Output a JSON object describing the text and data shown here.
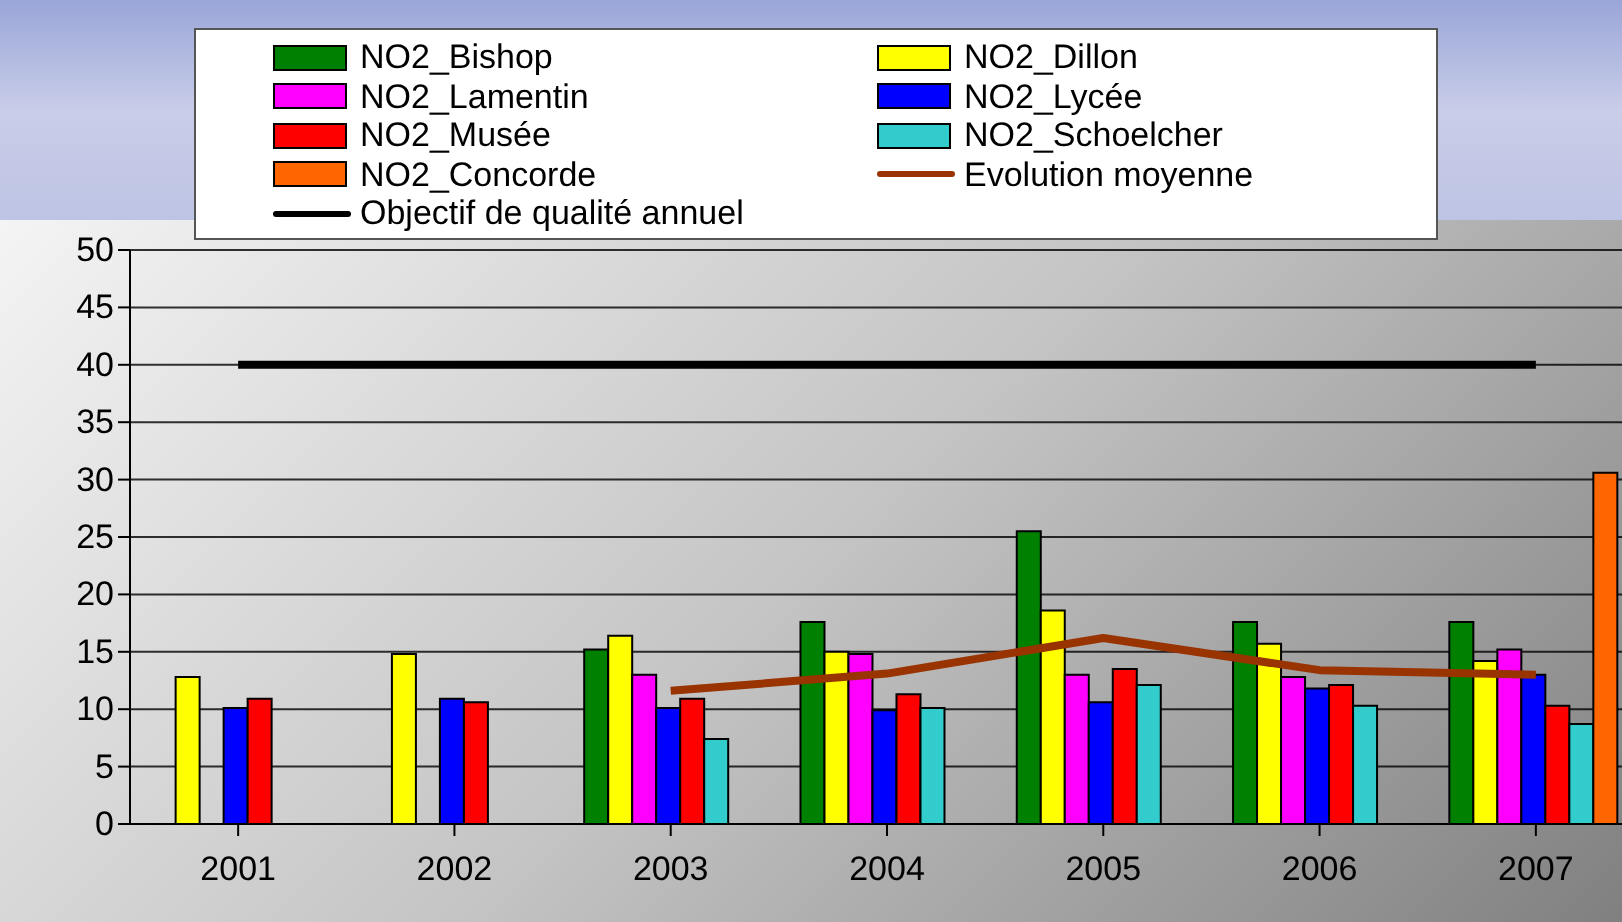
{
  "chart_data": {
    "type": "bar",
    "categories": [
      "2001",
      "2002",
      "2003",
      "2004",
      "2005",
      "2006",
      "2007"
    ],
    "series": [
      {
        "name": "NO2_Bishop",
        "color": "#008000",
        "values": [
          null,
          null,
          15.2,
          17.6,
          25.5,
          17.6,
          17.6
        ]
      },
      {
        "name": "NO2_Dillon",
        "color": "#ffff00",
        "values": [
          12.8,
          14.8,
          16.4,
          15.0,
          18.6,
          15.7,
          14.2
        ]
      },
      {
        "name": "NO2_Lamentin",
        "color": "#ff00ff",
        "values": [
          null,
          null,
          13.0,
          14.8,
          13.0,
          12.8,
          15.2
        ]
      },
      {
        "name": "NO2_Lycée",
        "color": "#0000ff",
        "values": [
          10.1,
          10.9,
          10.1,
          9.9,
          10.6,
          11.8,
          13.0
        ]
      },
      {
        "name": "NO2_Musée",
        "color": "#ff0000",
        "values": [
          10.9,
          10.6,
          10.9,
          11.3,
          13.5,
          12.1,
          10.3
        ]
      },
      {
        "name": "NO2_Schoelcher",
        "color": "#33cccc",
        "values": [
          null,
          null,
          7.4,
          10.1,
          12.1,
          10.3,
          8.7
        ]
      },
      {
        "name": "NO2_Concorde",
        "color": "#ff6600",
        "values": [
          null,
          null,
          null,
          null,
          null,
          null,
          30.6
        ]
      },
      {
        "name": "Evolution moyenne",
        "type": "line",
        "color": "#993300",
        "values": [
          null,
          null,
          11.6,
          13.1,
          16.2,
          13.4,
          13.0
        ]
      },
      {
        "name": "Objectif de qualité annuel",
        "type": "line",
        "color": "#000000",
        "values": [
          40,
          40,
          40,
          40,
          40,
          40,
          40
        ]
      }
    ],
    "ylim": [
      0,
      50
    ],
    "yticks": [
      0,
      5,
      10,
      15,
      20,
      25,
      30,
      35,
      40,
      45,
      50
    ],
    "grid": "y",
    "legend": "top",
    "marker": "none",
    "line_style": "solid"
  }
}
